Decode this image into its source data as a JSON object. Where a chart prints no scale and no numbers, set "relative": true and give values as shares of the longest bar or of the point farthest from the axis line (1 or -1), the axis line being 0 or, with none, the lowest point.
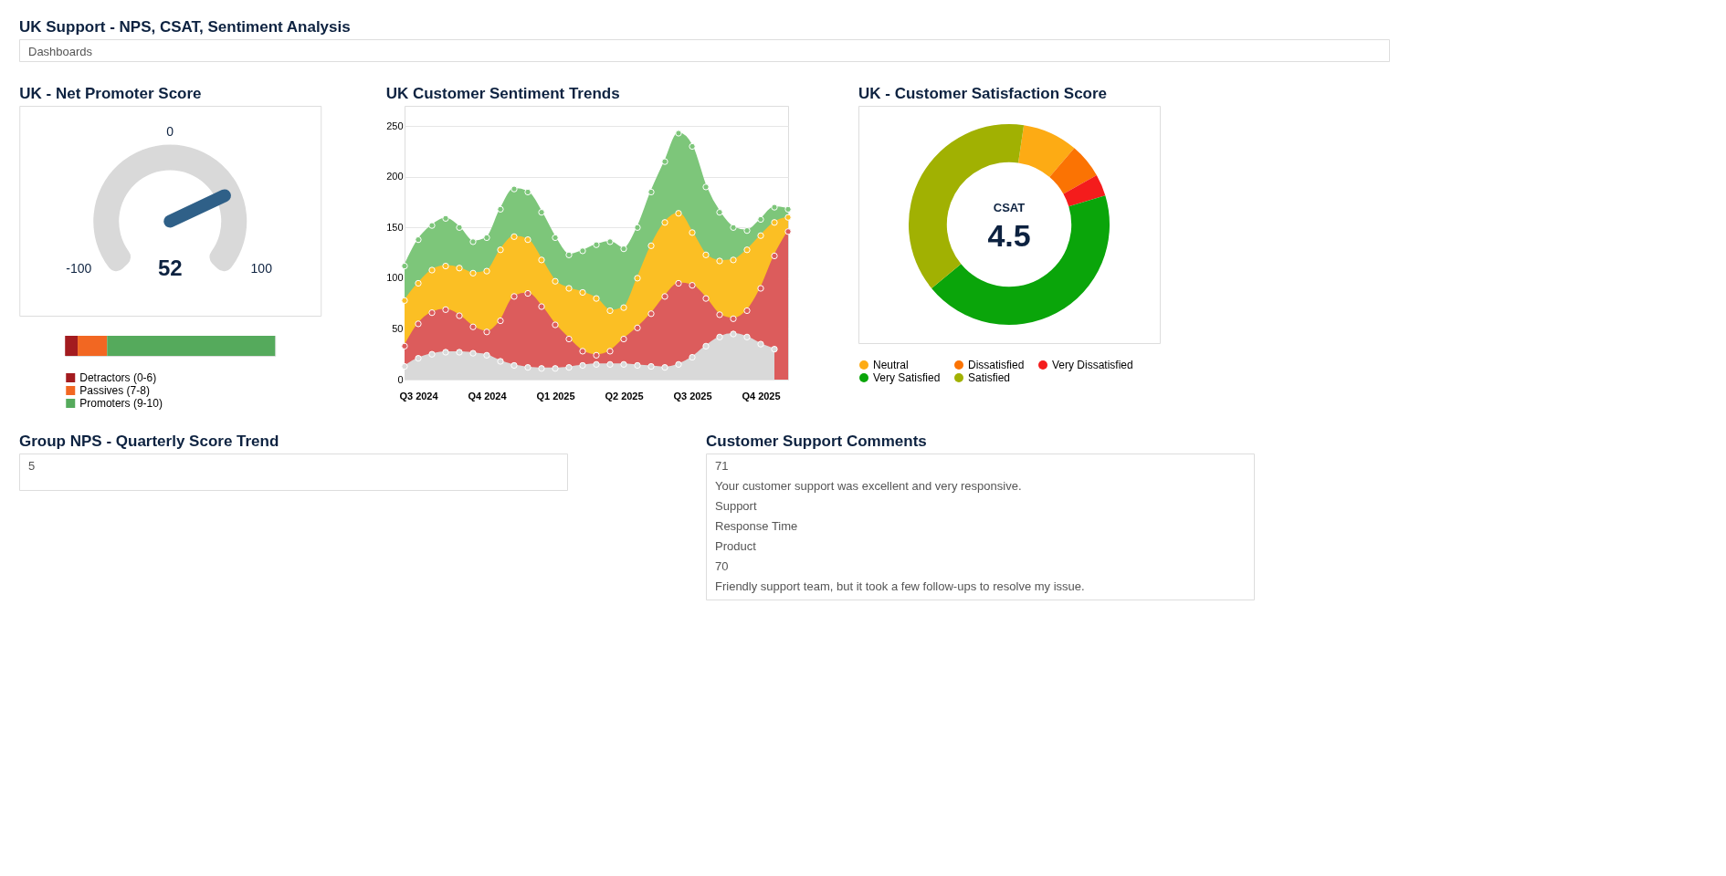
{
  "chart_data": [
    {
      "type": "other",
      "title": "UK Support - NPS, CSAT, Sentiment Analysis",
      "annotations": [
        "Dashboards"
      ]
    },
    {
      "type": "other",
      "title": "UK - Net Promoter Score",
      "annotations": [
        "0",
        "-100",
        "100",
        "52"
      ]
    },
    {
      "type": "bar",
      "orientation": "horizontal",
      "stacked": true,
      "relative": true,
      "legend": "bottom",
      "categories": [
        null
      ],
      "series": [
        {
          "name": "Detractors (0-6)",
          "color": "#a31b1f",
          "values": [
            0.06
          ]
        },
        {
          "name": "Passives (7-8)",
          "color": "#f26722",
          "values": [
            0.14
          ]
        },
        {
          "name": "Promoters (9-10)",
          "color": "#55aa5c",
          "values": [
            0.8
          ]
        }
      ]
    },
    {
      "type": "area",
      "title": "UK Customer Sentiment Trends",
      "marker": "circle",
      "grid": "y",
      "ylim": [
        0,
        270
      ],
      "yticks": [
        0,
        50,
        100,
        150,
        200,
        250
      ],
      "categories": [
        null,
        "Q3 2024",
        null,
        null,
        null,
        null,
        "Q4 2024",
        null,
        null,
        null,
        null,
        "Q1 2025",
        null,
        null,
        null,
        null,
        "Q2 2025",
        null,
        null,
        null,
        null,
        "Q3 2025",
        null,
        null,
        null,
        null,
        "Q4 2025",
        null,
        null
      ],
      "series": [
        {
          "color": "#7dc67a",
          "values": [
            112,
            138,
            152,
            159,
            150,
            136,
            140,
            168,
            188,
            185,
            165,
            140,
            123,
            127,
            133,
            136,
            129,
            150,
            185,
            215,
            243,
            230,
            190,
            165,
            150,
            147,
            158,
            170,
            168
          ]
        },
        {
          "color": "#fbbf24",
          "values": [
            78,
            95,
            108,
            112,
            110,
            105,
            107,
            128,
            141,
            138,
            118,
            97,
            90,
            86,
            80,
            68,
            71,
            100,
            132,
            155,
            164,
            145,
            123,
            117,
            118,
            128,
            142,
            155,
            160
          ]
        },
        {
          "color": "#dc5c5c",
          "values": [
            33,
            55,
            66,
            69,
            63,
            52,
            47,
            58,
            82,
            85,
            72,
            54,
            40,
            28,
            24,
            28,
            40,
            51,
            65,
            82,
            95,
            93,
            80,
            64,
            60,
            68,
            90,
            122,
            146
          ]
        },
        {
          "color": "#d9d9d9",
          "values": [
            13,
            21,
            25,
            27,
            27,
            26,
            24,
            18,
            14,
            12,
            11,
            11,
            12,
            14,
            15,
            15,
            15,
            14,
            13,
            12,
            15,
            22,
            33,
            42,
            45,
            42,
            35,
            30,
            null
          ]
        }
      ]
    },
    {
      "type": "donut",
      "title": "UK - Customer Satisfaction Score",
      "legend": "bottom",
      "annotations": [
        "CSAT",
        "4.5"
      ],
      "categories": [
        "Neutral",
        "Dissatisfied",
        "Very Dissatisfied",
        "Very Satisfied",
        "Satisfied"
      ],
      "values": [
        8.9,
        5.6,
        3.5,
        43.7,
        38.3
      ],
      "colors": [
        "#fdab14",
        "#fb7303",
        "#f41c1c",
        "#0aa50a",
        "#a1b102"
      ]
    },
    {
      "type": "other",
      "title": "Group NPS - Quarterly Score Trend",
      "annotations": [
        "5"
      ]
    },
    {
      "type": "other",
      "title": "Customer Support Comments",
      "annotations": [
        "71",
        "Your customer support was excellent and very responsive.",
        "Support",
        "Response Time",
        "Product",
        "70",
        "Friendly support team, but it took a few follow-ups to resolve my issue."
      ]
    }
  ]
}
